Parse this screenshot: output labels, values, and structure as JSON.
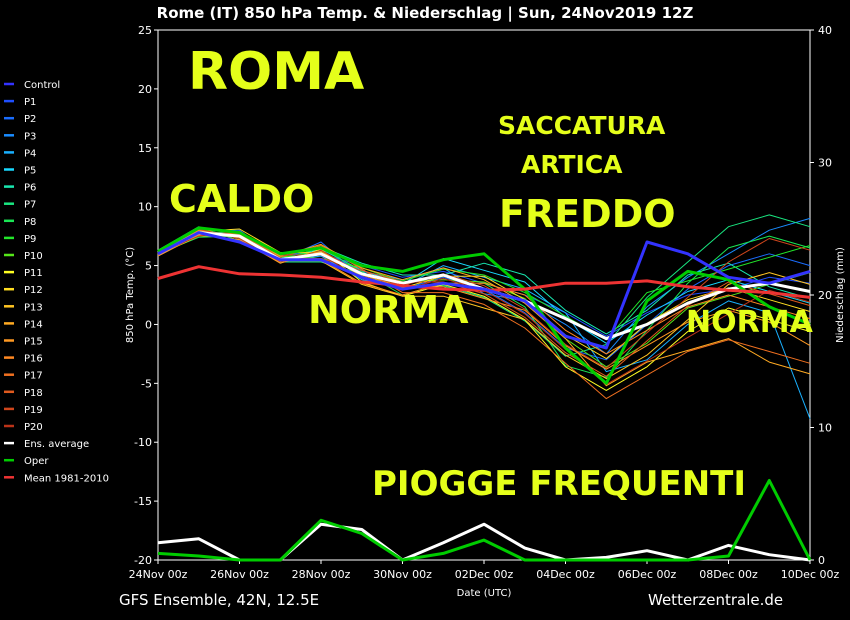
{
  "title": "Rome  (IT)  850 hPa Temp. & Niederschlag | Sun, 24Nov2019 12Z",
  "footer_left": "GFS Ensemble, 42N, 12.5E",
  "footer_right": "Wetterzentrale.de",
  "overlays": {
    "roma": "ROMA",
    "saccatura": "SACCATURA",
    "artica": "ARTICA",
    "caldo": "CALDO",
    "freddo": "FREDDO",
    "norma1": "NORMA",
    "norma2": "NORMA",
    "piogge": "PIOGGE FREQUENTI"
  },
  "colors": {
    "background": "#000000",
    "overlay_text": "#e5ff1a",
    "ens_average": "#ffffff",
    "oper": "#00cc00",
    "mean": "#ee3333",
    "control": "#3333ff"
  },
  "chart_data": {
    "type": "line",
    "title": "Rome  (IT)  850 hPa Temp. & Niederschlag | Sun, 24Nov2019 12Z",
    "xlabel": "Date (UTC)",
    "ylabel": "850 hPa Temp. (°C)",
    "y2label": "Niederschlag (mm)",
    "x_ticks": [
      "24Nov 00z",
      "26Nov 00z",
      "28Nov 00z",
      "30Nov 00z",
      "02Dec 00z",
      "04Dec 00z",
      "06Dec 00z",
      "08Dec 00z",
      "10Dec 00z"
    ],
    "ylim": [
      -20,
      25
    ],
    "y_ticks": [
      25,
      20,
      15,
      10,
      5,
      0,
      -5,
      -10,
      -15,
      -20
    ],
    "y2lim": [
      0,
      40
    ],
    "y2_ticks": [
      40,
      30,
      20,
      10,
      0
    ],
    "grid": false,
    "legend_position": "left",
    "x_days": [
      0,
      1,
      2,
      3,
      4,
      5,
      6,
      7,
      8,
      9,
      10,
      11,
      12,
      13,
      14,
      15,
      16
    ],
    "legend": [
      {
        "name": "Control",
        "color": "#3333ff"
      },
      {
        "name": "P1",
        "color": "#1f4fff"
      },
      {
        "name": "P2",
        "color": "#1a6dff"
      },
      {
        "name": "P3",
        "color": "#1a8cff"
      },
      {
        "name": "P4",
        "color": "#19b0ff"
      },
      {
        "name": "P5",
        "color": "#19d9ff"
      },
      {
        "name": "P6",
        "color": "#19e8b0"
      },
      {
        "name": "P7",
        "color": "#19e680"
      },
      {
        "name": "P8",
        "color": "#1ae655"
      },
      {
        "name": "P9",
        "color": "#22e62a"
      },
      {
        "name": "P10",
        "color": "#55e619"
      },
      {
        "name": "P11",
        "color": "#ffff22"
      },
      {
        "name": "P12",
        "color": "#ffdd22"
      },
      {
        "name": "P13",
        "color": "#ffc422"
      },
      {
        "name": "P14",
        "color": "#ffaa22"
      },
      {
        "name": "P15",
        "color": "#ff9922"
      },
      {
        "name": "P16",
        "color": "#ff8822"
      },
      {
        "name": "P17",
        "color": "#f07020"
      },
      {
        "name": "P18",
        "color": "#e05a1e"
      },
      {
        "name": "P19",
        "color": "#d0461c"
      },
      {
        "name": "P20",
        "color": "#bb3318"
      },
      {
        "name": "Ens. average",
        "color": "#ffffff"
      },
      {
        "name": "Oper",
        "color": "#00cc00"
      },
      {
        "name": "Mean 1981-2010",
        "color": "#ee3333"
      }
    ],
    "series": [
      {
        "name": "Ens. average",
        "color": "#ffffff",
        "width": 3,
        "values": [
          6.0,
          7.8,
          7.5,
          5.5,
          6.0,
          4.3,
          3.5,
          4.2,
          3.0,
          2.0,
          0.5,
          -1.2,
          0.0,
          1.8,
          3.0,
          3.5,
          2.8
        ]
      },
      {
        "name": "Oper",
        "color": "#00cc00",
        "width": 3,
        "values": [
          6.2,
          8.2,
          7.8,
          6.0,
          6.5,
          5.0,
          4.5,
          5.5,
          6.0,
          3.0,
          -2.0,
          -5.0,
          2.0,
          4.5,
          3.8,
          1.5,
          0.0
        ]
      },
      {
        "name": "Mean 1981-2010",
        "color": "#ee3333",
        "width": 3,
        "values": [
          3.9,
          4.9,
          4.3,
          4.2,
          4.0,
          3.6,
          3.3,
          3.0,
          2.9,
          3.0,
          3.5,
          3.5,
          3.7,
          3.2,
          2.9,
          2.7,
          2.3
        ]
      },
      {
        "name": "Control",
        "color": "#3333ff",
        "width": 3,
        "values": [
          6.0,
          7.8,
          7.0,
          5.5,
          5.5,
          4.0,
          3.0,
          3.5,
          3.0,
          2.0,
          -1.0,
          -2.0,
          7.0,
          6.0,
          4.0,
          3.5,
          4.5
        ]
      }
    ],
    "members": [
      {
        "color": "#1f4fff",
        "values": [
          6.0,
          7.5,
          7.8,
          6.0,
          6.0,
          5.0,
          4.0,
          4.5,
          3.5,
          2.5,
          1.0,
          -1.0,
          1.0,
          2.5,
          3.0,
          4.0,
          3.5
        ]
      },
      {
        "color": "#1a6dff",
        "values": [
          6.0,
          8.0,
          8.0,
          5.5,
          7.0,
          4.0,
          3.0,
          4.0,
          3.0,
          1.0,
          -2.0,
          -3.0,
          0.0,
          3.0,
          5.0,
          6.0,
          5.0
        ]
      },
      {
        "color": "#1a8cff",
        "values": [
          5.8,
          7.6,
          7.2,
          5.8,
          6.2,
          4.5,
          3.8,
          4.8,
          2.6,
          2.0,
          0.0,
          -2.5,
          1.5,
          4.0,
          6.0,
          8.0,
          9.0
        ]
      },
      {
        "color": "#19b0ff",
        "values": [
          6.1,
          7.9,
          7.6,
          5.4,
          5.8,
          3.8,
          3.2,
          5.0,
          4.0,
          3.0,
          1.0,
          -4.0,
          -3.0,
          0.0,
          2.0,
          1.0,
          -8.0
        ]
      },
      {
        "color": "#19d9ff",
        "values": [
          6.2,
          8.1,
          7.4,
          5.6,
          6.4,
          4.6,
          3.4,
          5.6,
          4.6,
          3.6,
          0.6,
          -1.6,
          0.8,
          2.8,
          3.8,
          2.8,
          1.8
        ]
      },
      {
        "color": "#19e8b0",
        "values": [
          5.9,
          7.7,
          7.9,
          5.9,
          6.6,
          5.2,
          4.2,
          4.2,
          5.2,
          4.2,
          1.2,
          -0.8,
          1.2,
          4.2,
          5.2,
          3.2,
          2.2
        ]
      },
      {
        "color": "#19e680",
        "values": [
          6.3,
          8.3,
          7.1,
          5.3,
          5.3,
          4.3,
          3.3,
          3.3,
          2.3,
          0.3,
          -2.7,
          -1.7,
          2.3,
          5.3,
          8.3,
          9.3,
          8.3
        ]
      },
      {
        "color": "#1ae655",
        "values": [
          6.0,
          7.4,
          7.5,
          5.5,
          6.5,
          4.5,
          2.5,
          3.5,
          3.5,
          1.5,
          -3.5,
          -4.5,
          -0.5,
          3.5,
          6.5,
          7.5,
          6.5
        ]
      },
      {
        "color": "#22e62a",
        "values": [
          6.1,
          7.8,
          7.7,
          5.7,
          6.2,
          4.2,
          3.7,
          4.7,
          4.2,
          2.7,
          0.7,
          -1.3,
          2.7,
          3.7,
          4.7,
          5.7,
          6.7
        ]
      },
      {
        "color": "#55e619",
        "values": [
          6.2,
          8.0,
          7.3,
          5.8,
          5.6,
          4.8,
          3.6,
          3.8,
          3.6,
          2.2,
          -1.2,
          -3.6,
          -1.6,
          1.4,
          2.4,
          3.4,
          4.4
        ]
      },
      {
        "color": "#ffff22",
        "values": [
          5.9,
          7.5,
          7.6,
          5.2,
          6.4,
          3.6,
          2.4,
          3.4,
          2.4,
          0.4,
          -3.6,
          -5.6,
          -3.6,
          -0.6,
          1.4,
          0.4,
          -0.6
        ]
      },
      {
        "color": "#ffdd22",
        "values": [
          6.0,
          7.9,
          8.1,
          6.1,
          6.1,
          4.1,
          3.1,
          4.1,
          4.1,
          2.1,
          -0.9,
          -2.9,
          0.1,
          2.1,
          3.1,
          2.1,
          1.1
        ]
      },
      {
        "color": "#ffc422",
        "values": [
          6.1,
          7.7,
          7.4,
          5.4,
          5.4,
          3.4,
          2.4,
          2.4,
          1.4,
          0.4,
          -2.6,
          -4.6,
          -2.6,
          0.4,
          3.4,
          4.4,
          3.4
        ]
      },
      {
        "color": "#ffaa22",
        "values": [
          6.2,
          8.2,
          7.8,
          5.8,
          6.8,
          4.8,
          3.8,
          4.8,
          3.8,
          1.8,
          -1.2,
          -5.2,
          -3.2,
          -2.2,
          -1.2,
          -3.2,
          -4.2
        ]
      },
      {
        "color": "#ff9922",
        "values": [
          5.8,
          7.6,
          7.2,
          5.2,
          6.2,
          4.2,
          3.2,
          3.2,
          2.2,
          1.2,
          -1.8,
          -3.8,
          -1.8,
          0.2,
          1.2,
          0.2,
          -1.8
        ]
      },
      {
        "color": "#ff8822",
        "values": [
          6.0,
          8.0,
          7.5,
          5.5,
          5.5,
          3.5,
          2.5,
          3.5,
          3.5,
          2.5,
          -0.5,
          -2.5,
          -0.5,
          1.5,
          2.5,
          1.5,
          0.5
        ]
      },
      {
        "color": "#f07020",
        "values": [
          6.1,
          7.8,
          7.7,
          5.7,
          6.7,
          4.7,
          2.7,
          2.7,
          1.7,
          -0.3,
          -3.3,
          -6.3,
          -4.3,
          -2.3,
          -1.3,
          -2.3,
          -3.3
        ]
      },
      {
        "color": "#e05a1e",
        "values": [
          5.9,
          7.7,
          7.6,
          5.6,
          5.6,
          4.6,
          3.6,
          3.6,
          2.6,
          0.6,
          -2.4,
          -4.4,
          -1.4,
          1.6,
          3.6,
          2.6,
          1.6
        ]
      },
      {
        "color": "#d0461c",
        "values": [
          6.2,
          8.1,
          7.3,
          5.3,
          6.3,
          4.3,
          3.3,
          4.3,
          3.3,
          1.3,
          -1.7,
          -3.7,
          -0.7,
          2.3,
          5.3,
          7.3,
          6.3
        ]
      },
      {
        "color": "#bb3318",
        "values": [
          6.0,
          7.5,
          7.9,
          5.9,
          5.9,
          3.9,
          2.9,
          3.9,
          2.9,
          0.9,
          -2.1,
          -5.1,
          -3.1,
          -1.1,
          0.9,
          2.9,
          1.9
        ]
      }
    ],
    "precip_series": [
      {
        "name": "Ens. average",
        "color": "#ffffff",
        "width": 3,
        "values": [
          1.3,
          1.6,
          0.0,
          0.0,
          2.7,
          2.3,
          0.0,
          1.3,
          2.7,
          0.9,
          0.0,
          0.2,
          0.7,
          0.0,
          1.1,
          0.4,
          0.0
        ]
      },
      {
        "name": "Oper",
        "color": "#00cc00",
        "width": 3,
        "values": [
          0.5,
          0.3,
          0.0,
          0.0,
          3.0,
          2.0,
          0.0,
          0.5,
          1.5,
          0.0,
          0.0,
          0.0,
          0.0,
          0.0,
          0.3,
          6.0,
          0.0
        ]
      }
    ]
  }
}
